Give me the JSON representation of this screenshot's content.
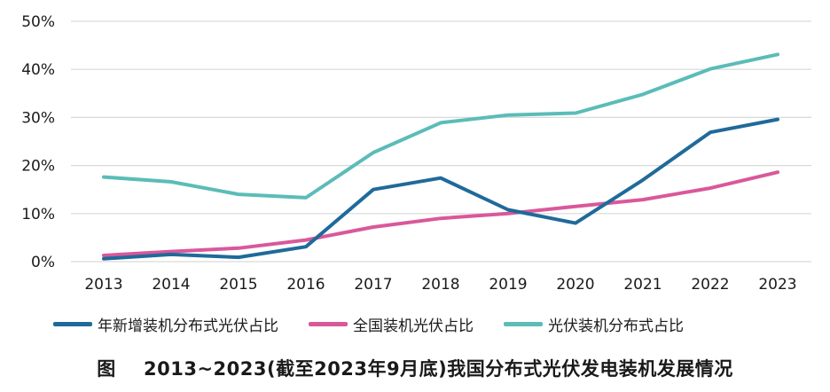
{
  "caption": "图    2013~2023(截至2023年9月底)我国分布式光伏发电装机发展情况",
  "chart_data": {
    "type": "line",
    "title": "",
    "xlabel": "",
    "ylabel": "",
    "ylim": [
      0,
      50
    ],
    "y_ticks": [
      "0%",
      "10%",
      "20%",
      "30%",
      "40%",
      "50%"
    ],
    "categories": [
      "2013",
      "2014",
      "2015",
      "2016",
      "2017",
      "2018",
      "2019",
      "2020",
      "2021",
      "2022",
      "2023"
    ],
    "grid": "horizontal",
    "legend_position": "bottom",
    "series": [
      {
        "name": "年新增装机分布式光伏占比",
        "color": "#1f6a9a",
        "values": [
          0.6,
          1.5,
          0.9,
          3.1,
          15.0,
          17.4,
          10.8,
          8.0,
          17.0,
          26.9,
          29.6
        ]
      },
      {
        "name": "全国装机光伏占比",
        "color": "#d9589a",
        "values": [
          1.3,
          2.1,
          2.8,
          4.5,
          7.2,
          9.0,
          10.0,
          11.5,
          12.9,
          15.3,
          18.6
        ]
      },
      {
        "name": "光伏装机分布式占比",
        "color": "#5bbcb8",
        "values": [
          17.6,
          16.6,
          14.0,
          13.3,
          22.7,
          28.9,
          30.5,
          30.9,
          34.8,
          40.1,
          43.1
        ]
      }
    ]
  }
}
